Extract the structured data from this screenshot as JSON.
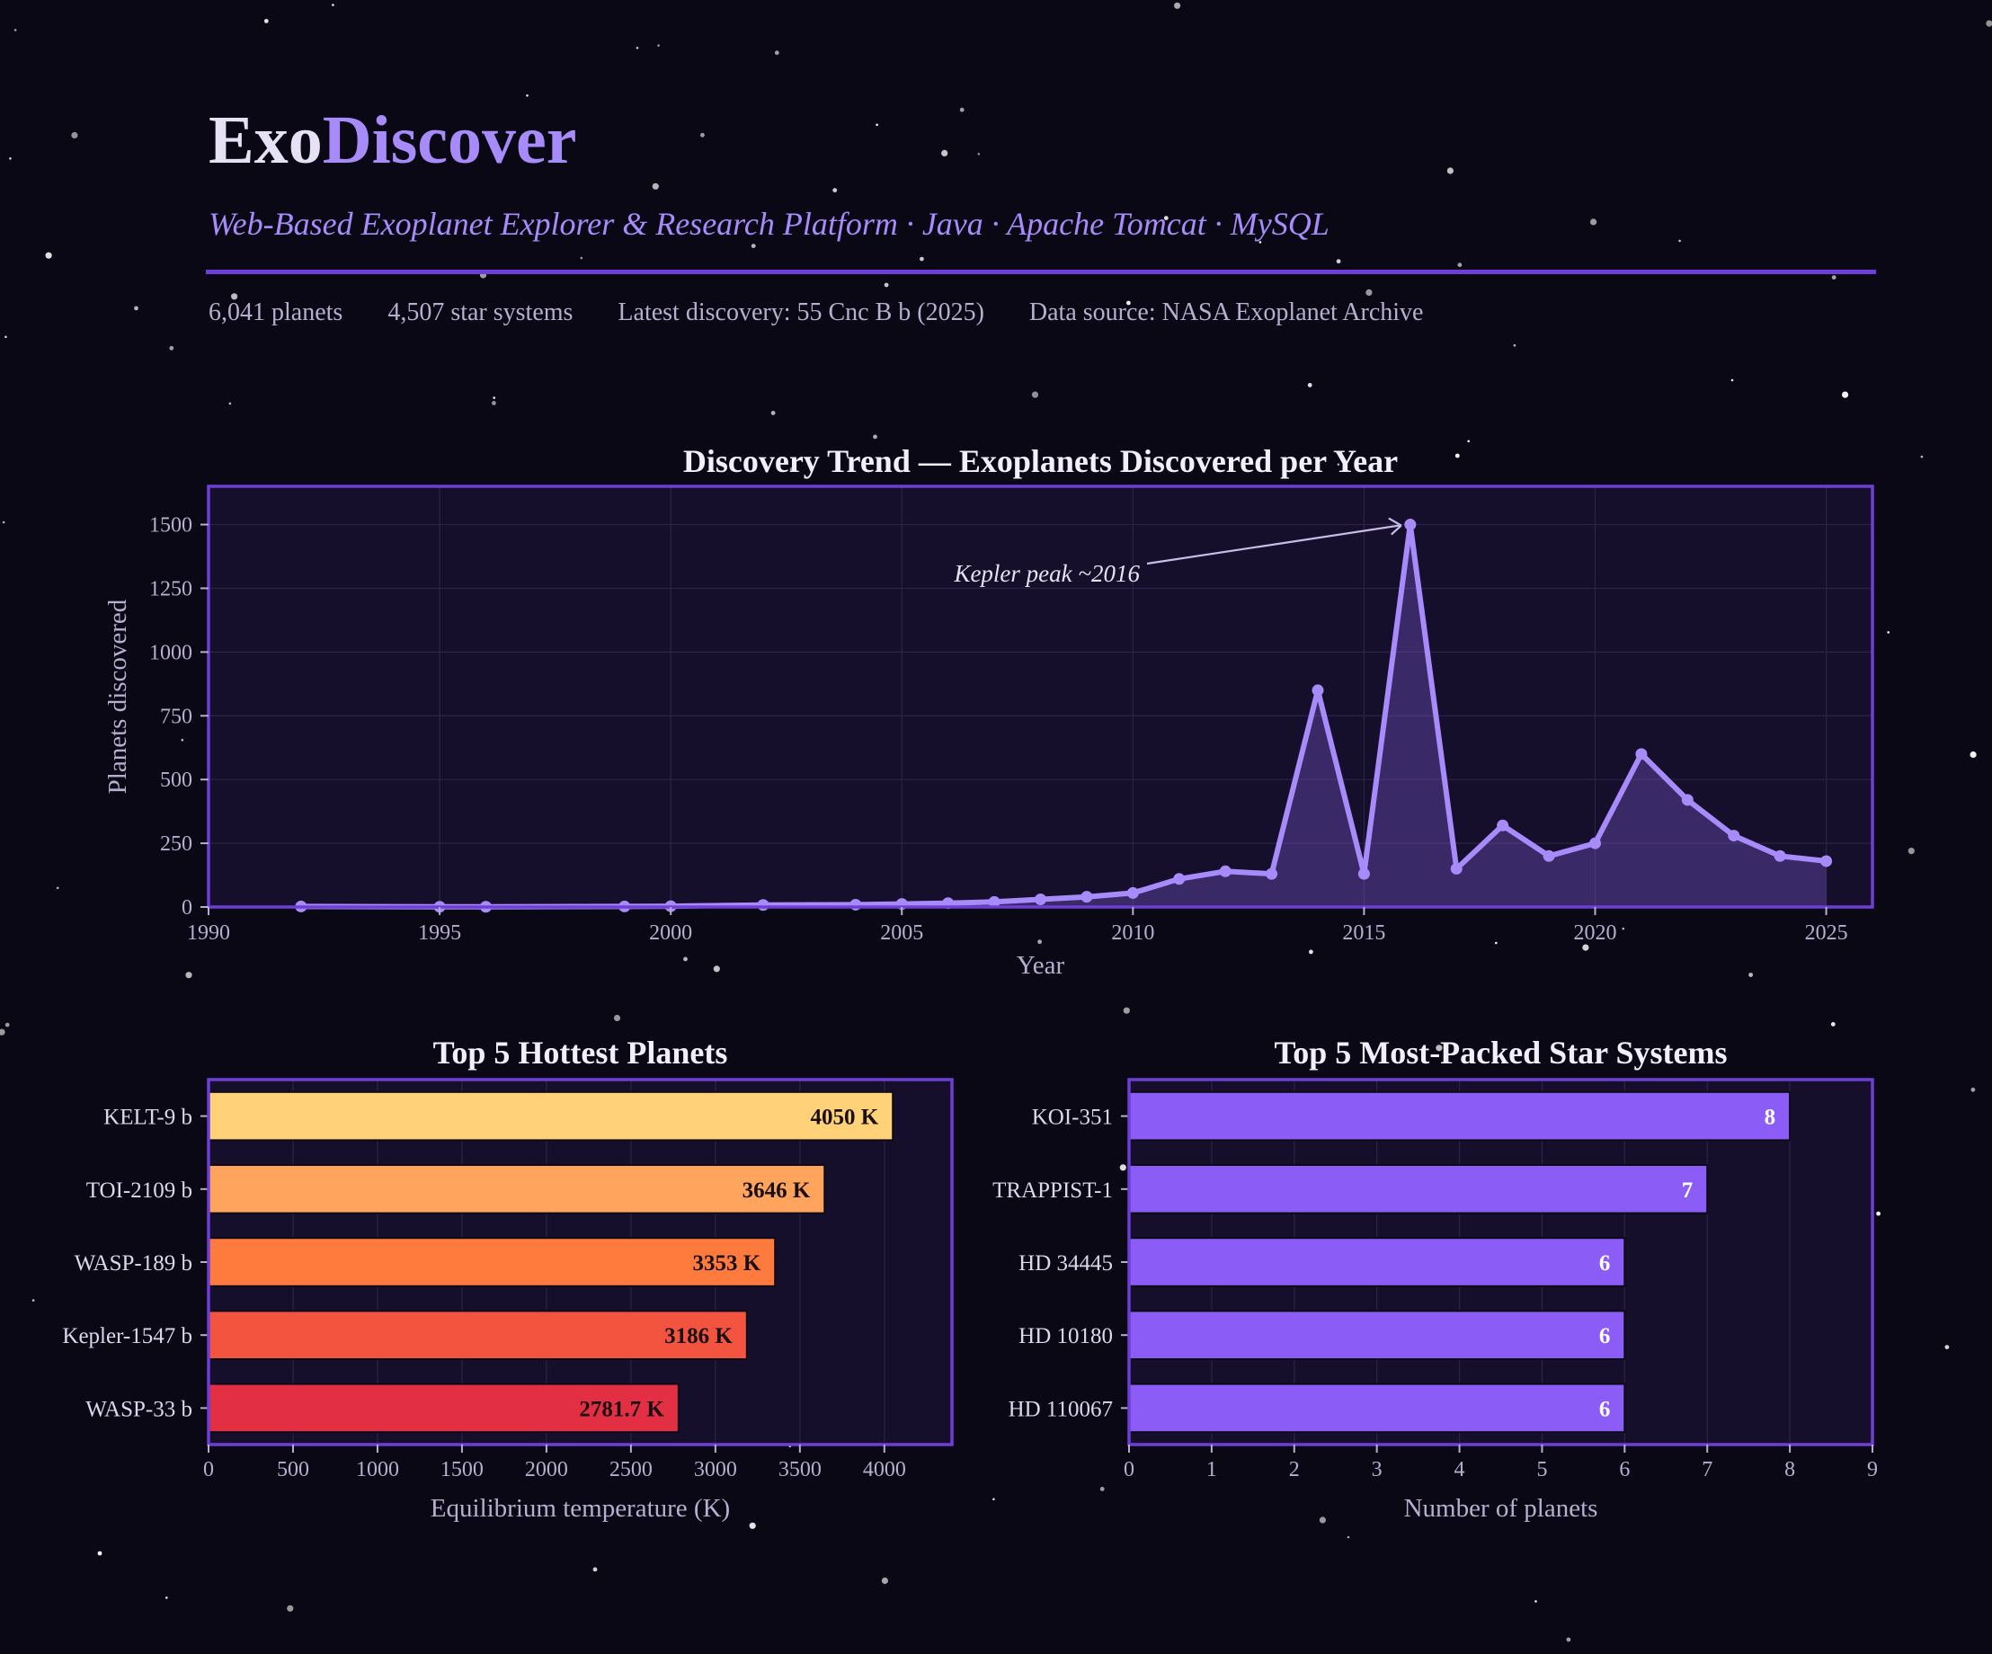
{
  "header": {
    "brand_part1": "Exo",
    "brand_part2": "Discover",
    "subtitle": "Web-Based Exoplanet Explorer & Research Platform  ·  Java · Apache Tomcat · MySQL",
    "stats": {
      "planets": "6,041 planets",
      "systems": "4,507 star systems",
      "latest": "Latest discovery:  55 Cnc B b (2025)",
      "source": "Data source:  NASA Exoplanet Archive"
    }
  },
  "colors": {
    "background": "#0a0814",
    "panel": "#160f2b",
    "accent": "#a78bfa",
    "frame": "#6d3fd6",
    "bar_purple": "#8b5cf6",
    "hot_bars": [
      "#ffd27a",
      "#ffa45c",
      "#ff7a3d",
      "#f25440",
      "#e22f43"
    ]
  },
  "chart_data": [
    {
      "type": "line",
      "title": "Discovery Trend — Exoplanets Discovered per Year",
      "xlabel": "Year",
      "ylabel": "Planets discovered",
      "xlim": [
        1990,
        2026
      ],
      "ylim": [
        0,
        1650
      ],
      "xticks": [
        1990,
        1995,
        2000,
        2005,
        2010,
        2015,
        2020,
        2025
      ],
      "yticks": [
        0,
        250,
        500,
        750,
        1000,
        1250,
        1500
      ],
      "grid": true,
      "area_fill": true,
      "x": [
        1992,
        1995,
        1996,
        1999,
        2000,
        2002,
        2004,
        2005,
        2006,
        2007,
        2008,
        2009,
        2010,
        2011,
        2012,
        2013,
        2014,
        2015,
        2016,
        2017,
        2018,
        2019,
        2020,
        2021,
        2022,
        2023,
        2024,
        2025
      ],
      "y": [
        2,
        1,
        1,
        2,
        3,
        8,
        9,
        12,
        15,
        20,
        30,
        40,
        55,
        110,
        140,
        130,
        850,
        130,
        1500,
        150,
        320,
        200,
        250,
        600,
        420,
        280,
        200,
        180
      ],
      "annotation": {
        "text": "Kepler peak ~2016",
        "x": 2016,
        "y": 1500
      }
    },
    {
      "type": "bar",
      "orientation": "horizontal",
      "title": "Top 5 Hottest Planets",
      "xlabel": "Equilibrium temperature (K)",
      "xlim": [
        0,
        4400
      ],
      "xticks": [
        0,
        500,
        1000,
        1500,
        2000,
        2500,
        3000,
        3500,
        4000
      ],
      "grid": true,
      "categories": [
        "KELT-9 b",
        "TOI-2109 b",
        "WASP-189 b",
        "Kepler-1547 b",
        "WASP-33 b"
      ],
      "values": [
        4050,
        3646,
        3353,
        3186,
        2781.7
      ],
      "value_labels": [
        "4050 K",
        "3646 K",
        "3353 K",
        "3186 K",
        "2781.7 K"
      ]
    },
    {
      "type": "bar",
      "orientation": "horizontal",
      "title": "Top 5 Most-Packed Star Systems",
      "xlabel": "Number of planets",
      "xlim": [
        0,
        9
      ],
      "xticks": [
        0,
        1,
        2,
        3,
        4,
        5,
        6,
        7,
        8,
        9
      ],
      "grid": true,
      "categories": [
        "KOI-351",
        "TRAPPIST-1",
        "HD 34445",
        "HD 10180",
        "HD 110067"
      ],
      "values": [
        8,
        7,
        6,
        6,
        6
      ],
      "value_labels": [
        "8",
        "7",
        "6",
        "6",
        "6"
      ]
    }
  ]
}
